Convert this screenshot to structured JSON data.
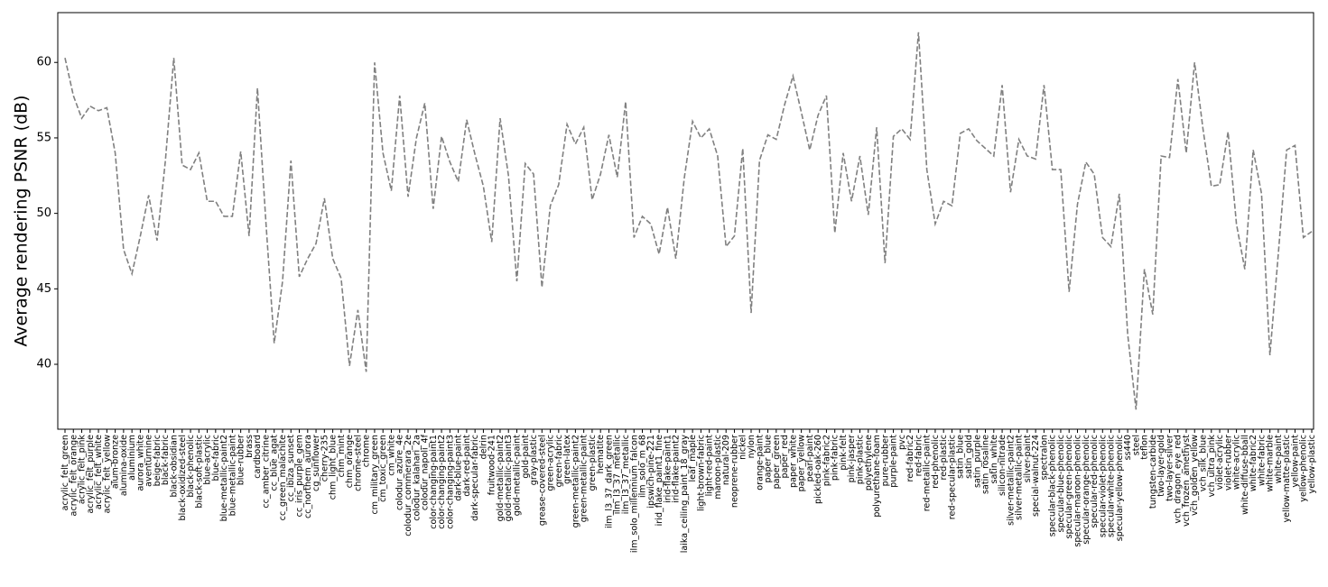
{
  "chart_data": {
    "type": "line",
    "y_label": "Average rendering PSNR (dB)",
    "categories": [
      "acrylic_felt_green",
      "acrylic_felt_orange",
      "acrylic_felt_pink",
      "acrylic_felt_purple",
      "acrylic_felt_white",
      "acrylic_felt_yellow",
      "alum-bronze",
      "alumina-oxide",
      "aluminium",
      "aurora_white",
      "aventurnine",
      "beige-fabric",
      "black-fabric",
      "black-obsidian",
      "black-oxidized-steel",
      "black-phenolic",
      "black-soft-plastic",
      "blue-acrylic",
      "blue-fabric",
      "blue-metallic-paint2",
      "blue-metallic-paint",
      "blue-rubber",
      "brass",
      "cardboard",
      "cc_amber_citrine",
      "cc_blue_agat",
      "cc_green_malachite",
      "cc_ibiza_sunset",
      "cc_iris_purple_gem",
      "cc_northern_aurora",
      "cg_sunflower",
      "cherry-235",
      "chm_light_blue",
      "chm_mint",
      "chm_orange",
      "chrome-steel",
      "chrome",
      "cm_military_green",
      "cm_toxic_green",
      "cm_white",
      "colodur_azure_4e",
      "colodur_commerara_2e",
      "colodur_kalahari_2a",
      "colodur_napoli_4f",
      "color-changing-paint1",
      "color-changing-paint2",
      "color-changing-paint3",
      "dark-blue-paint",
      "dark-red-paint",
      "dark-specular-fabric",
      "delrin",
      "fruitwood-241",
      "gold-metallic-paint2",
      "gold-metallic-paint3",
      "gold-metallic-paint",
      "gold-paint",
      "gray-plastic",
      "grease-covered-steel",
      "green-acrylic",
      "green-fabric",
      "green-latex",
      "green-metallic-paint2",
      "green-metallic-paint",
      "green-plastic",
      "hematite",
      "ilm_l3_37_dark_green",
      "ilm_l3_37_metallic",
      "ilm_l3_37_metallic",
      "ilm_solo_millennium_falcon",
      "ilm_solo_m_68",
      "ipswich-pine-221",
      "irid_flake_paint1_fine",
      "irid-flake-paint1",
      "irid-flake-paint2",
      "laika_ceiling_paint_18_gray",
      "leaf_maple",
      "light-brown-fabric",
      "light-red-paint",
      "maroon-plastic",
      "natural-209",
      "neoprene-rubber",
      "nickel",
      "nylon",
      "orange-paint",
      "paper_blue",
      "paper_green",
      "paper_red",
      "paper_white",
      "paper_yellow",
      "pearl-paint",
      "pickled-oak-260",
      "pink-fabric2",
      "pink-fabric",
      "pink-felt",
      "pink-jasper",
      "pink-plastic",
      "polyethylene",
      "polyurethane-foam",
      "pure-rubber",
      "purple-paint",
      "pvc",
      "red-fabric2",
      "red-fabric",
      "red-metallic-paint",
      "red-phenolic",
      "red-plastic",
      "red-specular-plastic",
      "satin_blue",
      "satin_gold",
      "satin_purple",
      "satin_rosaline",
      "satin_white",
      "silicon-nitrade",
      "silver-metallic-paint2",
      "silver-metallic-paint",
      "silver-paint",
      "special-walnut-224",
      "spectralon",
      "specular-black-phenolic",
      "specular-blue-phenolic",
      "specular-green-phenolic",
      "specular-maroon-phenolic",
      "specular-orange-phenolic",
      "specular-red-phenolic",
      "specular-violet-phenolic",
      "specular-white-phenolic",
      "specular-yellow-phenolic",
      "ss440",
      "steel",
      "teflon",
      "tungsten-carbide",
      "two-layer-gold",
      "two-layer-silver",
      "vch_dragon_eye_red",
      "vch_frozen_amethyst",
      "vch_golden_yellow",
      "vch_silk_blue",
      "vch_ultra_pink",
      "violet-acrylic",
      "violet-rubber",
      "white-acrylic",
      "white-diffuse-bball",
      "white-fabric2",
      "white-fabric",
      "white-marble",
      "white-paint",
      "yellow-matte-plastic",
      "yellow-paint",
      "yellow-phenolic",
      "yellow-plastic"
    ],
    "values": [
      60.3,
      57.8,
      56.3,
      57.1,
      56.8,
      57.0,
      54.0,
      47.6,
      46.0,
      48.5,
      51.2,
      48.2,
      53.5,
      60.3,
      53.2,
      52.9,
      54.0,
      50.8,
      50.8,
      49.8,
      49.8,
      54.1,
      48.5,
      58.3,
      49.5,
      41.4,
      45.5,
      53.5,
      45.8,
      47.0,
      48.0,
      51.0,
      47.0,
      45.7,
      39.9,
      43.6,
      39.5,
      60.0,
      54.0,
      51.5,
      57.8,
      51.1,
      55.0,
      57.3,
      50.3,
      55.1,
      53.4,
      52.1,
      56.2,
      53.9,
      51.8,
      48.1,
      56.3,
      52.5,
      45.5,
      53.3,
      52.6,
      45.1,
      50.5,
      51.9,
      55.9,
      54.6,
      55.7,
      50.9,
      52.6,
      55.2,
      52.4,
      57.4,
      48.4,
      49.8,
      49.3,
      47.3,
      50.4,
      47.0,
      52.3,
      56.1,
      55.0,
      55.6,
      53.8,
      47.8,
      48.5,
      54.3,
      43.4,
      53.5,
      55.2,
      54.9,
      57.2,
      59.1,
      56.7,
      54.2,
      56.5,
      57.8,
      48.7,
      54.0,
      50.8,
      53.8,
      49.9,
      55.7,
      46.7,
      55.1,
      55.6,
      54.9,
      62.0,
      52.9,
      49.3,
      50.8,
      50.5,
      55.3,
      55.6,
      54.8,
      54.3,
      53.8,
      58.5,
      51.4,
      54.9,
      53.8,
      53.6,
      58.5,
      52.9,
      52.9,
      44.8,
      50.6,
      53.4,
      52.6,
      48.4,
      47.8,
      51.3,
      42.0,
      37.0,
      46.3,
      43.3,
      53.8,
      53.7,
      58.9,
      54.0,
      60.0,
      55.6,
      51.8,
      51.9,
      55.4,
      49.3,
      46.3,
      54.2,
      51.3,
      40.6,
      47.3,
      54.2,
      54.5,
      48.4,
      48.8
    ],
    "color": "#808080",
    "line_style": "dashed",
    "ylim": [
      35.7,
      63.3
    ],
    "yticks": [
      40,
      45,
      50,
      55,
      60
    ],
    "grid": false
  }
}
